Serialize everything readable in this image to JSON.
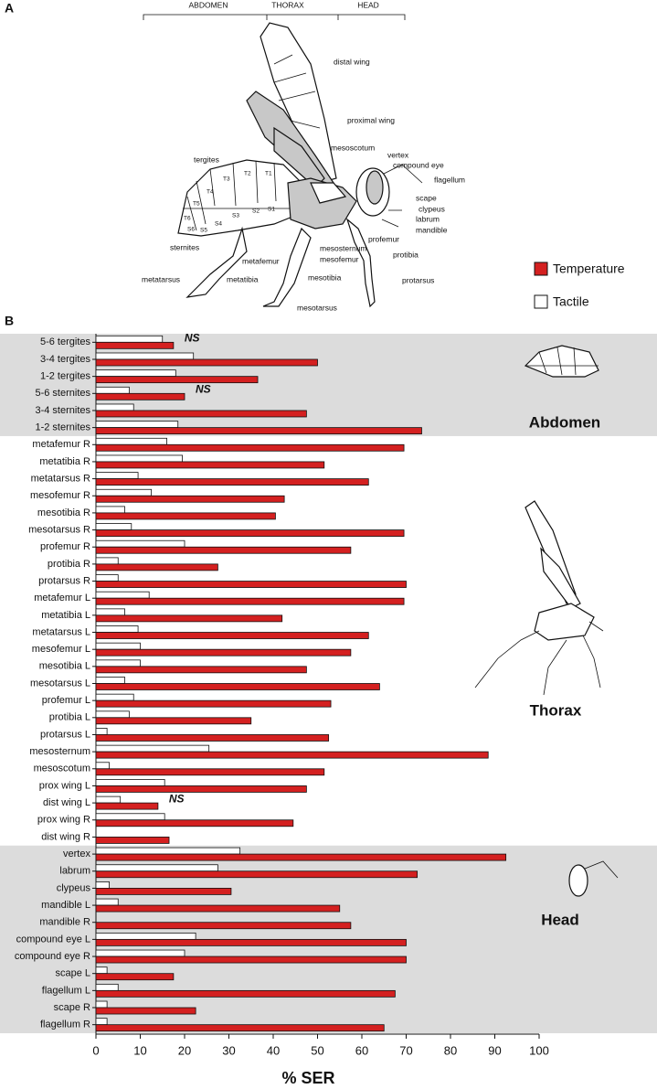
{
  "panel_labels": [
    "A",
    "B"
  ],
  "diagram": {
    "regions": [
      "ABDOMEN",
      "THORAX",
      "HEAD"
    ],
    "parts": [
      "distal wing",
      "proximal wing",
      "mesoscotum",
      "vertex",
      "compound eye",
      "flagellum",
      "tergites",
      "scape",
      "clypeus",
      "labrum",
      "mandible",
      "profemur",
      "protibia",
      "sternites",
      "metafemur",
      "mesosternum",
      "mesofemur",
      "mesotibia",
      "metatibia",
      "metatarsus",
      "protarsus",
      "mesotarsus"
    ],
    "segments": [
      "T1",
      "T2",
      "T3",
      "T4",
      "T5",
      "T6",
      "S1",
      "S2",
      "S3",
      "S4",
      "S5",
      "S6"
    ]
  },
  "chart_data": {
    "type": "hbar",
    "x_label": "% SER",
    "xlim": [
      0,
      100
    ],
    "xticks": [
      0,
      10,
      20,
      30,
      40,
      50,
      60,
      70,
      80,
      90,
      100
    ],
    "categories": [
      "5-6 tergites",
      "3-4 tergites",
      "1-2 tergites",
      "5-6 sternites",
      "3-4 sternites",
      "1-2 sternites",
      "metafemur R",
      "metatibia R",
      "metatarsus R",
      "mesofemur R",
      "mesotibia R",
      "mesotarsus R",
      "profemur R",
      "protibia R",
      "protarsus R",
      "metafemur L",
      "metatibia L",
      "metatarsus L",
      "mesofemur L",
      "mesotibia L",
      "mesotarsus L",
      "profemur L",
      "protibia L",
      "protarsus L",
      "mesosternum",
      "mesoscotum",
      "prox wing L",
      "dist wing L",
      "prox wing R",
      "dist wing R",
      "vertex",
      "labrum",
      "clypeus",
      "mandible L",
      "mandible R",
      "compound eye L",
      "compound eye R",
      "scape L",
      "flagellum L",
      "scape R",
      "flagellum R"
    ],
    "series": [
      {
        "name": "Temperature",
        "color": "#d42020",
        "values": [
          17.5,
          50,
          36.5,
          20,
          47.5,
          73.5,
          69.5,
          51.5,
          61.5,
          42.5,
          40.5,
          69.5,
          57.5,
          27.5,
          70,
          69.5,
          42,
          61.5,
          57.5,
          47.5,
          64,
          53,
          35,
          52.5,
          88.5,
          51.5,
          47.5,
          14,
          44.5,
          16.5,
          92.5,
          72.5,
          30.5,
          55,
          57.5,
          70,
          70,
          17.5,
          67.5,
          22.5,
          65
        ]
      },
      {
        "name": "Tactile",
        "color": "#ffffff",
        "values": [
          15,
          22,
          18,
          7.5,
          8.5,
          18.5,
          16,
          19.5,
          9.5,
          12.5,
          6.5,
          8,
          20,
          5,
          5,
          12,
          6.5,
          9.5,
          10,
          10,
          6.5,
          8.5,
          7.5,
          2.5,
          25.5,
          3,
          15.5,
          5.5,
          15.5,
          0,
          32.5,
          27.5,
          3,
          5,
          0,
          22.5,
          20,
          2.5,
          5,
          2.5,
          2.5
        ]
      }
    ],
    "regions": [
      {
        "name": "Abdomen",
        "size": 6,
        "shaded": true
      },
      {
        "name": "Thorax",
        "size": 24,
        "shaded": false
      },
      {
        "name": "Head",
        "size": 11,
        "shaded": true
      }
    ],
    "annotations": [
      {
        "text": "NS",
        "index": 0
      },
      {
        "text": "NS",
        "index": 3
      },
      {
        "text": "NS",
        "index": 27
      }
    ]
  }
}
